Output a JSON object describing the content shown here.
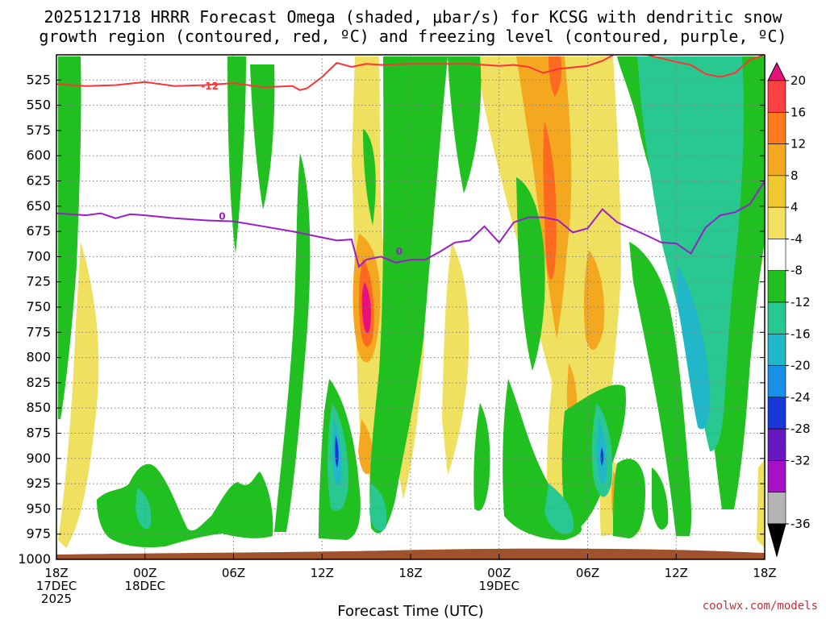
{
  "title": {
    "line1": "2025121718 HRRR Forecast Omega (shaded, μbar/s) for KCSG with dendritic snow",
    "line2": "growth region (contoured, red, ºC) and freezing level (contoured, purple, ºC)"
  },
  "credit": "coolwx.com/models",
  "colors": {
    "red_contour": "#ff3333",
    "purple_contour": "#9a1ec8",
    "ground": "#a0522d",
    "grid": "#808080"
  },
  "chart_data": {
    "type": "heatmap",
    "xlabel": "Forecast Time (UTC)",
    "ylabel": "",
    "x_range_hours": [
      0,
      48
    ],
    "ylim": [
      1000,
      500
    ],
    "y_ticks": [
      525,
      550,
      575,
      600,
      625,
      650,
      675,
      700,
      725,
      750,
      775,
      800,
      825,
      850,
      875,
      900,
      925,
      950,
      975,
      1000
    ],
    "x_ticks": [
      {
        "hour": 0,
        "line1": "18Z",
        "line2": "17DEC",
        "line3": "2025"
      },
      {
        "hour": 6,
        "line1": "00Z",
        "line2": "18DEC",
        "line3": ""
      },
      {
        "hour": 12,
        "line1": "06Z",
        "line2": "",
        "line3": ""
      },
      {
        "hour": 18,
        "line1": "12Z",
        "line2": "",
        "line3": ""
      },
      {
        "hour": 24,
        "line1": "18Z",
        "line2": "",
        "line3": ""
      },
      {
        "hour": 30,
        "line1": "00Z",
        "line2": "19DEC",
        "line3": ""
      },
      {
        "hour": 36,
        "line1": "06Z",
        "line2": "",
        "line3": ""
      },
      {
        "hour": 42,
        "line1": "12Z",
        "line2": "",
        "line3": ""
      },
      {
        "hour": 48,
        "line1": "18Z",
        "line2": "",
        "line3": ""
      }
    ],
    "colorbar": {
      "labels": [
        "20",
        "16",
        "12",
        "8",
        "4",
        "-4",
        "-8",
        "-12",
        "-16",
        "-20",
        "-24",
        "-28",
        "-32",
        "-36"
      ],
      "boundaries": [
        24,
        20,
        16,
        12,
        8,
        4,
        -4,
        -8,
        -12,
        -16,
        -20,
        -24,
        -28,
        -32,
        -36
      ],
      "colors": [
        "#e8107a",
        "#ff4040",
        "#ff7a1a",
        "#f4a820",
        "#f0c830",
        "#f2e060",
        "#ffffff",
        "#20c020",
        "#28c890",
        "#20b8c8",
        "#1890e8",
        "#1838d8",
        "#6818c0",
        "#a810c8",
        "#b4b4b4"
      ],
      "top_arrow_color": "#e8107a",
      "bottom_arrow_color": "#000000"
    },
    "contours": {
      "dendritic_minus12": {
        "label": "-12",
        "points": [
          [
            0,
            529
          ],
          [
            2,
            531
          ],
          [
            4,
            530
          ],
          [
            6,
            527
          ],
          [
            8,
            531
          ],
          [
            10,
            530
          ],
          [
            12,
            528
          ],
          [
            14,
            532
          ],
          [
            16,
            531
          ],
          [
            16.5,
            535
          ],
          [
            17,
            533
          ],
          [
            18,
            522
          ],
          [
            19,
            508
          ],
          [
            20,
            512
          ],
          [
            21,
            509
          ],
          [
            22,
            510
          ],
          [
            24,
            509
          ],
          [
            26,
            509
          ],
          [
            28,
            509
          ],
          [
            30,
            511
          ],
          [
            31,
            510
          ],
          [
            32,
            512
          ],
          [
            33,
            518
          ],
          [
            34,
            514
          ],
          [
            36,
            511
          ],
          [
            37,
            506
          ],
          [
            38,
            498
          ],
          [
            40,
            500
          ],
          [
            42,
            507
          ],
          [
            43,
            510
          ],
          [
            44,
            519
          ],
          [
            45,
            522
          ],
          [
            46,
            518
          ],
          [
            47,
            505
          ],
          [
            48,
            500
          ]
        ]
      },
      "freezing_level_0": {
        "label": "0",
        "points": [
          [
            0,
            657
          ],
          [
            2,
            659
          ],
          [
            3,
            657
          ],
          [
            4,
            662
          ],
          [
            5,
            658
          ],
          [
            6,
            659
          ],
          [
            8,
            662
          ],
          [
            10,
            664
          ],
          [
            12,
            665
          ],
          [
            14,
            670
          ],
          [
            16,
            675
          ],
          [
            18,
            681
          ],
          [
            19,
            684
          ],
          [
            20,
            683
          ],
          [
            20.5,
            710
          ],
          [
            21,
            703
          ],
          [
            22,
            700
          ],
          [
            23,
            706
          ],
          [
            24,
            703
          ],
          [
            25,
            703
          ],
          [
            26,
            695
          ],
          [
            27,
            686
          ],
          [
            28,
            684
          ],
          [
            29,
            670
          ],
          [
            30,
            686
          ],
          [
            31,
            666
          ],
          [
            32,
            661
          ],
          [
            33,
            661
          ],
          [
            34,
            664
          ],
          [
            35,
            676
          ],
          [
            36,
            672
          ],
          [
            37,
            653
          ],
          [
            38,
            666
          ],
          [
            40,
            679
          ],
          [
            41,
            686
          ],
          [
            42,
            687
          ],
          [
            43,
            697
          ],
          [
            44,
            671
          ],
          [
            45,
            659
          ],
          [
            46,
            656
          ],
          [
            47,
            648
          ],
          [
            48,
            625
          ]
        ]
      }
    }
  }
}
